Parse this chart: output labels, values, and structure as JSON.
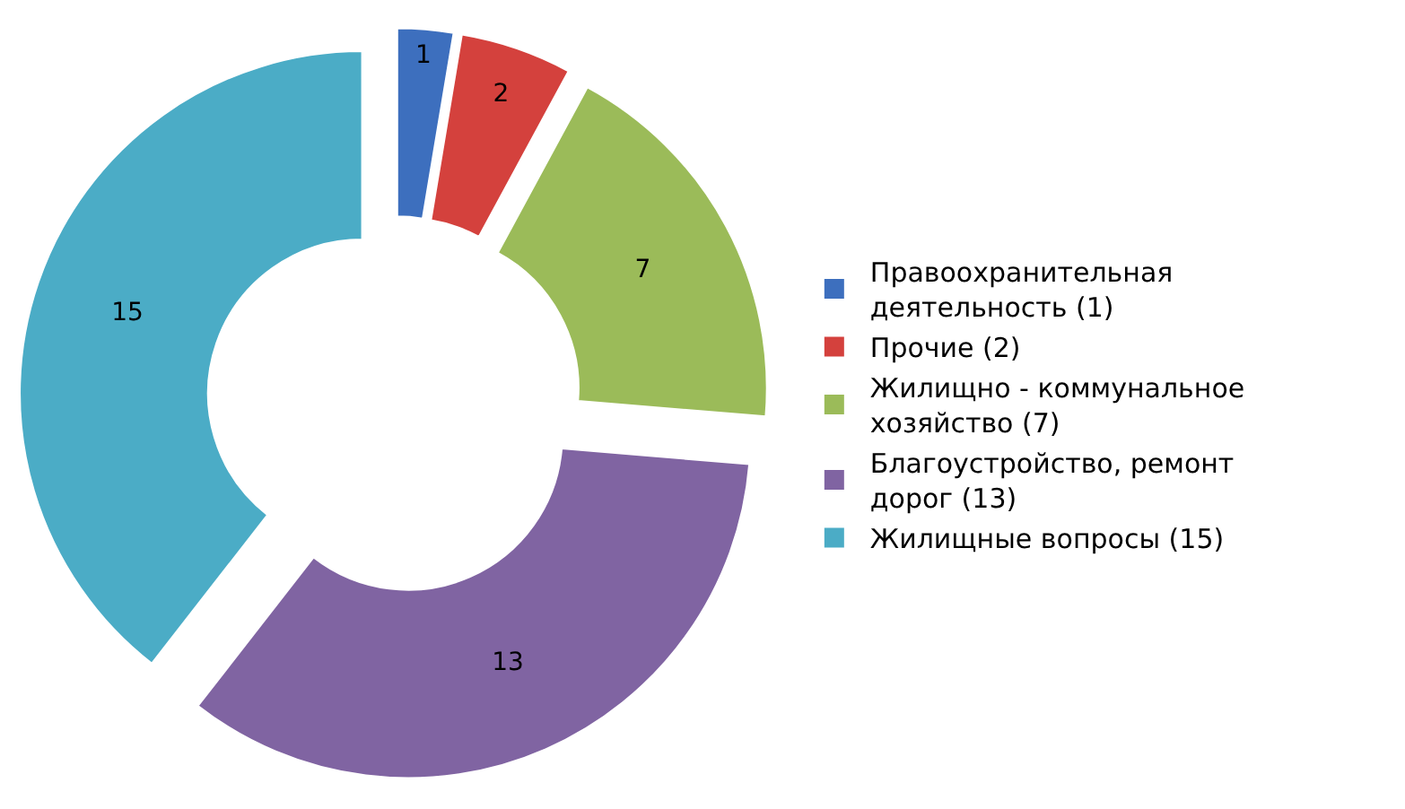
{
  "chart_data": {
    "type": "donut",
    "categories": [
      "Правоохранительная деятельность (1)",
      "Прочие (2)",
      "Жилищно - коммунальное хозяйство (7)",
      "Благоустройство, ремонт дорог (13)",
      "Жилищные вопросы (15)"
    ],
    "values": [
      1,
      2,
      7,
      13,
      15
    ],
    "colors": [
      "#3d6fbe",
      "#d4413d",
      "#9bbb59",
      "#8064a2",
      "#4bacc6"
    ],
    "data_labels": true,
    "legend": "right"
  }
}
